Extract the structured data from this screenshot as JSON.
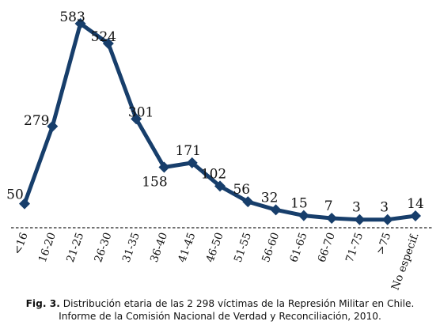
{
  "chart_data": {
    "type": "line",
    "categories": [
      "<16",
      "16-20",
      "21-25",
      "26-30",
      "31-35",
      "36-40",
      "41-45",
      "46-50",
      "51-55",
      "56-60",
      "61-65",
      "66-70",
      "71-75",
      ">75",
      "No especif."
    ],
    "values": [
      50,
      279,
      583,
      524,
      301,
      158,
      171,
      102,
      56,
      32,
      15,
      7,
      3,
      3,
      14
    ],
    "ylim": [
      0,
      620
    ],
    "grid": false,
    "baseline": "dashed",
    "line_color": "#173e6b"
  },
  "caption": {
    "tag": "Fig. 3.",
    "line1": "Distribución etaria de las 2 298 víctimas de la Represión Militar en Chile.",
    "line2": "Informe de la Comisión Nacional de Verdad y Reconciliación, 2010."
  }
}
